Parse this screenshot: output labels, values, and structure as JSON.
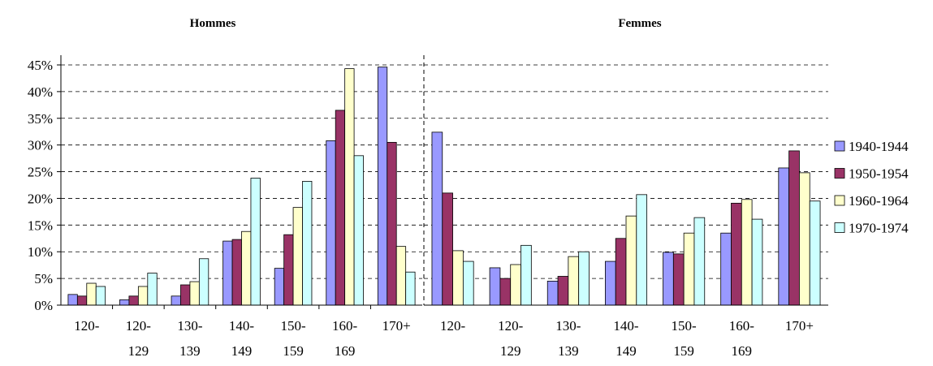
{
  "chart_data": [
    {
      "type": "bar",
      "title": "Hommes",
      "categories": [
        [
          "120-"
        ],
        [
          "120-",
          "129"
        ],
        [
          "130-",
          "139"
        ],
        [
          "140-",
          "149"
        ],
        [
          "150-",
          "159"
        ],
        [
          "160-",
          "169"
        ],
        [
          "170+"
        ]
      ],
      "series": [
        {
          "name": "1940-1944",
          "color": "#9999ff",
          "values": [
            2.0,
            1.0,
            1.7,
            12.0,
            6.9,
            30.8,
            44.6
          ]
        },
        {
          "name": "1950-1954",
          "color": "#993366",
          "values": [
            1.7,
            1.7,
            3.8,
            12.3,
            13.2,
            36.5,
            30.5
          ]
        },
        {
          "name": "1960-1964",
          "color": "#ffffcc",
          "values": [
            4.1,
            3.5,
            4.4,
            13.8,
            18.3,
            44.3,
            11.0
          ]
        },
        {
          "name": "1970-1974",
          "color": "#ccffff",
          "values": [
            3.5,
            6.0,
            8.7,
            23.8,
            23.2,
            28.0,
            6.2
          ]
        }
      ],
      "ylim": [
        0,
        45
      ],
      "yticks": [
        {
          "value": 0,
          "label": "0%"
        },
        {
          "value": 5,
          "label": "5%"
        },
        {
          "value": 10,
          "label": "10%"
        },
        {
          "value": 15,
          "label": "15%"
        },
        {
          "value": 20,
          "label": "20%"
        },
        {
          "value": 25,
          "label": "25%"
        },
        {
          "value": 30,
          "label": "30%"
        },
        {
          "value": 35,
          "label": "35%"
        },
        {
          "value": 40,
          "label": "40%"
        },
        {
          "value": 45,
          "label": "45%"
        }
      ],
      "grid": true
    },
    {
      "type": "bar",
      "title": "Femmes",
      "categories": [
        [
          "120-"
        ],
        [
          "120-",
          "129"
        ],
        [
          "130-",
          "139"
        ],
        [
          "140-",
          "149"
        ],
        [
          "150-",
          "159"
        ],
        [
          "160-",
          "169"
        ],
        [
          "170+"
        ]
      ],
      "series": [
        {
          "name": "1940-1944",
          "color": "#9999ff",
          "values": [
            32.4,
            7.0,
            4.5,
            8.2,
            9.9,
            13.5,
            25.7
          ]
        },
        {
          "name": "1950-1954",
          "color": "#993366",
          "values": [
            21.0,
            5.0,
            5.4,
            12.5,
            9.6,
            19.1,
            28.9
          ]
        },
        {
          "name": "1960-1964",
          "color": "#ffffcc",
          "values": [
            10.2,
            7.6,
            9.1,
            16.7,
            13.5,
            19.8,
            24.8
          ]
        },
        {
          "name": "1970-1974",
          "color": "#ccffff",
          "values": [
            8.2,
            11.2,
            10.0,
            20.7,
            16.4,
            16.1,
            19.5
          ]
        }
      ],
      "ylim": [
        0,
        45
      ],
      "yticks": [
        0,
        5,
        10,
        15,
        20,
        25,
        30,
        35,
        40,
        45
      ],
      "grid": true,
      "legend": "right"
    }
  ]
}
